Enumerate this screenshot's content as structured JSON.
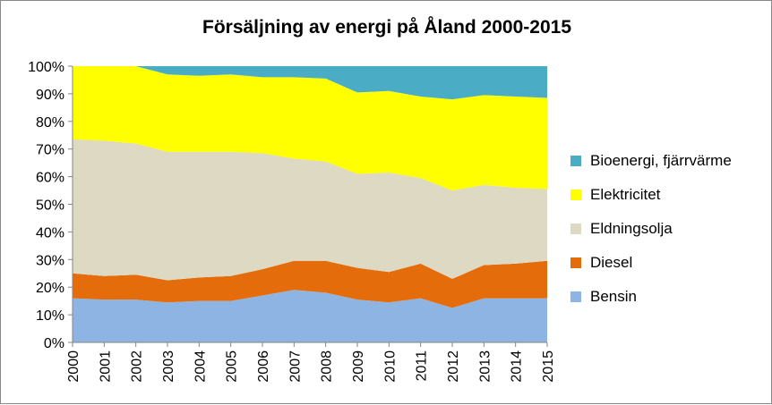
{
  "chart_data": {
    "type": "area",
    "stacked": "percent",
    "title": "Försäljning av energi på Åland 2000-2015",
    "xlabel": "",
    "ylabel": "",
    "ylim": [
      0,
      100
    ],
    "y_ticks": [
      "0%",
      "10%",
      "20%",
      "30%",
      "40%",
      "50%",
      "60%",
      "70%",
      "80%",
      "90%",
      "100%"
    ],
    "categories": [
      "2000",
      "2001",
      "2002",
      "2003",
      "2004",
      "2005",
      "2006",
      "2007",
      "2008",
      "2009",
      "2010",
      "2011",
      "2012",
      "2013",
      "2014",
      "2015"
    ],
    "legend_position": "right",
    "grid": false,
    "series": [
      {
        "name": "Bensin",
        "color": "#8eb4e3",
        "values": [
          16,
          15.5,
          15.5,
          14.5,
          15,
          15,
          17,
          19,
          18,
          15.5,
          14.5,
          16,
          12.5,
          16,
          16,
          16
        ]
      },
      {
        "name": "Diesel",
        "color": "#e46c0a",
        "values": [
          9,
          8.5,
          9,
          8,
          8.5,
          9,
          9.5,
          10.5,
          11.5,
          11.5,
          11,
          12.5,
          10.5,
          12,
          12.5,
          13.5
        ]
      },
      {
        "name": "Eldningsolja",
        "color": "#ddd9c3",
        "values": [
          48.5,
          49,
          47.5,
          46.5,
          45.5,
          45,
          42,
          37,
          36,
          34,
          36,
          31,
          32,
          29,
          27.5,
          26
        ]
      },
      {
        "name": "Elektricitet",
        "color": "#ffff00",
        "values": [
          26.5,
          27,
          28,
          28,
          27.5,
          28,
          27.5,
          29.5,
          30,
          29.5,
          29.5,
          29.5,
          33,
          32.5,
          33,
          33
        ]
      },
      {
        "name": "Bioenergi, fjärrvärme",
        "color": "#4bacc6",
        "values": [
          0,
          0,
          0,
          3,
          3.5,
          3,
          4,
          4,
          4.5,
          9.5,
          9,
          11,
          12,
          10.5,
          11,
          11.5
        ]
      }
    ]
  }
}
